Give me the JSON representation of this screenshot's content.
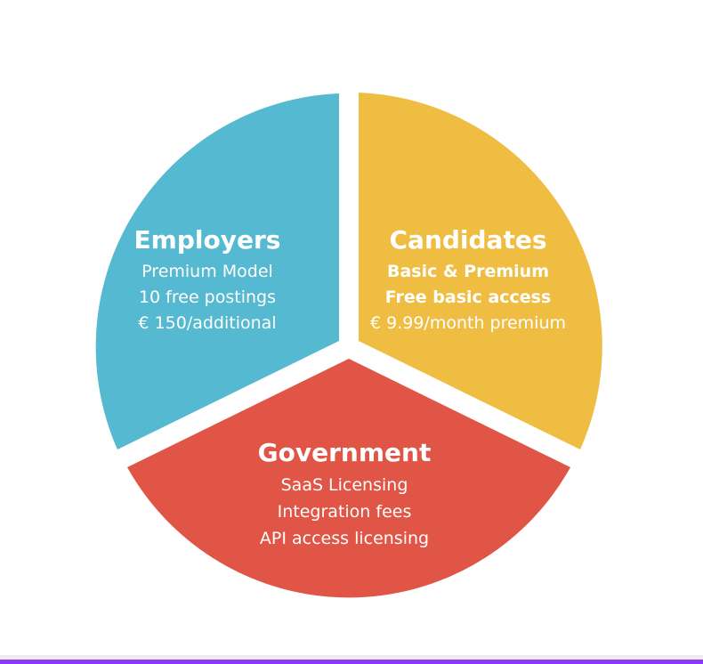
{
  "segments": {
    "employers": {
      "title": "Employers",
      "lines": [
        "Premium Model",
        "10 free postings",
        "€ 150/additional"
      ],
      "color": "#55b9d1"
    },
    "candidates": {
      "title": "Candidates",
      "lines": [
        "Basic & Premium",
        "Free basic access",
        "€ 9.99/month premium"
      ],
      "color": "#efbd42"
    },
    "government": {
      "title": "Government",
      "lines": [
        "SaaS Licensing",
        "Integration fees",
        "API access licensing"
      ],
      "color": "#e05545"
    }
  },
  "colors": {
    "background": "#ffffff",
    "accent_rule": "#8b3bf5"
  }
}
